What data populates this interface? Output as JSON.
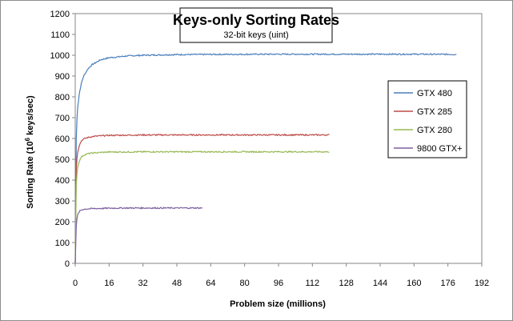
{
  "chart_data": {
    "type": "line",
    "title": "Keys-only Sorting Rates",
    "subtitle": "32-bit keys (uint)",
    "xlabel": "Problem size (millions)",
    "ylabel_prefix": "Sorting Rate (10",
    "ylabel_sup": "6",
    "ylabel_suffix": " keys/sec)",
    "xlim": [
      0,
      192
    ],
    "ylim": [
      0,
      1200
    ],
    "xticks": [
      "0",
      "16",
      "32",
      "48",
      "64",
      "80",
      "96",
      "112",
      "128",
      "144",
      "160",
      "176",
      "192"
    ],
    "yticks": [
      "0",
      "100",
      "200",
      "300",
      "400",
      "500",
      "600",
      "700",
      "800",
      "900",
      "1000",
      "1100",
      "1200"
    ],
    "grid": false,
    "legend_position": "right",
    "series": [
      {
        "name": "GTX 480",
        "color": "#4a7ebb",
        "xmax": 180,
        "x": [
          0.5,
          1,
          2,
          3,
          4,
          6,
          8,
          12,
          16,
          24,
          32,
          48,
          64,
          96,
          128,
          160,
          180
        ],
        "values": [
          600,
          740,
          820,
          870,
          900,
          935,
          955,
          978,
          988,
          996,
          1000,
          1003,
          1004,
          1005,
          1005,
          1005,
          1004
        ]
      },
      {
        "name": "GTX 285",
        "color": "#be4b48",
        "xmax": 120,
        "x": [
          0.5,
          1,
          2,
          3,
          4,
          6,
          8,
          12,
          16,
          24,
          32,
          48,
          64,
          96,
          120
        ],
        "values": [
          450,
          530,
          570,
          590,
          598,
          605,
          609,
          613,
          615,
          616,
          617,
          617,
          617,
          617,
          617
        ]
      },
      {
        "name": "GTX 280",
        "color": "#98b954",
        "xmax": 120,
        "x": [
          0.5,
          1,
          2,
          3,
          4,
          6,
          8,
          12,
          16,
          24,
          32,
          48,
          64,
          96,
          120
        ],
        "values": [
          380,
          455,
          495,
          512,
          520,
          527,
          530,
          533,
          535,
          535,
          536,
          536,
          536,
          536,
          536
        ]
      },
      {
        "name": "9800 GTX+",
        "color": "#7d60a0",
        "xmax": 60,
        "x": [
          0.5,
          1,
          2,
          3,
          4,
          6,
          8,
          12,
          16,
          24,
          32,
          48,
          60
        ],
        "values": [
          180,
          230,
          250,
          257,
          260,
          262,
          263,
          264,
          265,
          266,
          266,
          266,
          266
        ]
      }
    ]
  }
}
